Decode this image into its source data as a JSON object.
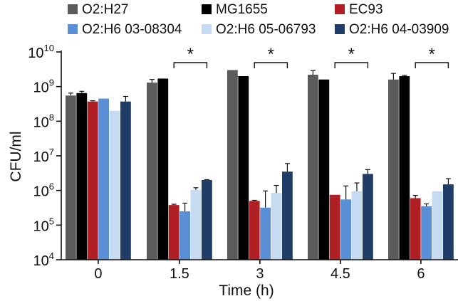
{
  "chart_data": {
    "type": "bar",
    "xlabel": "Time (h)",
    "ylabel": "CFU/ml",
    "yscale": "log",
    "ylim": [
      10000,
      10000000000
    ],
    "ytick_values": [
      10000,
      100000,
      1000000,
      10000000,
      100000000,
      1000000000,
      10000000000
    ],
    "ytick_labels": [
      {
        "base": "10",
        "exp": "4"
      },
      {
        "base": "10",
        "exp": "5"
      },
      {
        "base": "10",
        "exp": "6"
      },
      {
        "base": "10",
        "exp": "7"
      },
      {
        "base": "10",
        "exp": "8"
      },
      {
        "base": "10",
        "exp": "9"
      },
      {
        "base": "10",
        "exp": "10"
      }
    ],
    "categories": [
      "0",
      "1.5",
      "3",
      "4.5",
      "6"
    ],
    "legend_placement": "top",
    "significance_label": "*",
    "significant_categories": [
      "1.5",
      "3",
      "4.5",
      "6"
    ],
    "series": [
      {
        "name": "O2:H27",
        "color": "#5b5b5b",
        "values": [
          550000000,
          1300000000,
          3000000000,
          2200000000,
          1600000000
        ],
        "errors": [
          100000000,
          300000000,
          0,
          700000000,
          800000000
        ]
      },
      {
        "name": "MG1655",
        "color": "#000000",
        "values": [
          650000000,
          1700000000,
          2000000000,
          1600000000,
          2000000000
        ],
        "errors": [
          80000000,
          0,
          0,
          0,
          100000000
        ]
      },
      {
        "name": "EC93",
        "color": "#b01f24",
        "values": [
          370000000,
          380000,
          500000,
          750000,
          600000
        ],
        "errors": [
          20000000,
          20000,
          20000,
          0,
          120000
        ]
      },
      {
        "name": "O2:H6 03-08304",
        "color": "#5a8fd6",
        "values": [
          450000000,
          250000,
          320000,
          550000,
          350000
        ],
        "errors": [
          0,
          180000,
          650000,
          800000,
          60000
        ]
      },
      {
        "name": "O2:H6 05-06793",
        "color": "#c6daf2",
        "values": [
          200000000,
          1050000,
          850000,
          950000,
          950000
        ],
        "errors": [
          0,
          150000,
          550000,
          700000,
          0
        ]
      },
      {
        "name": "O2:H6 04-03909",
        "color": "#1f3d66",
        "values": [
          370000000,
          2000000,
          3500000,
          3000000,
          1500000
        ],
        "errors": [
          150000000,
          50000,
          2500000,
          1000000,
          700000
        ]
      }
    ]
  }
}
